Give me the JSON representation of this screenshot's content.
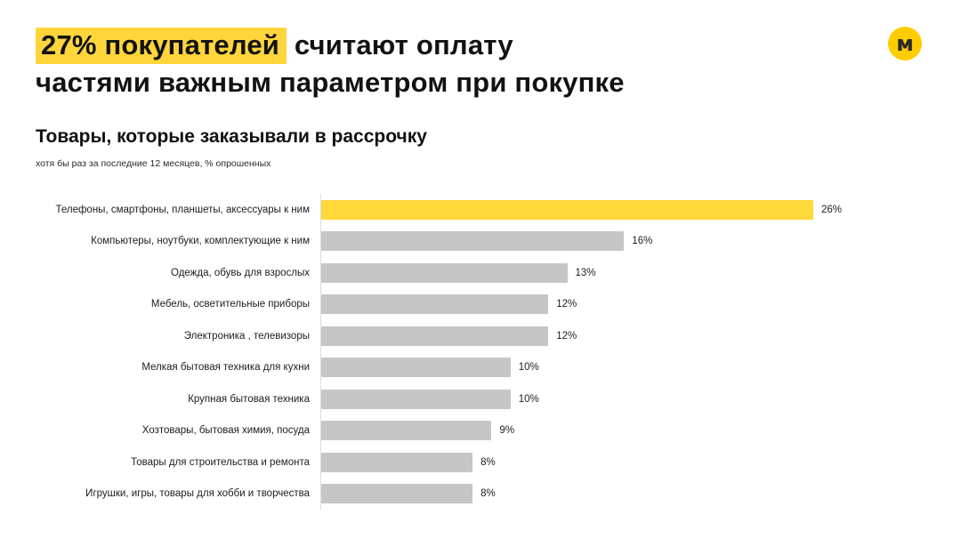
{
  "headline": {
    "highlight": "27% покупателей",
    "line1_rest": " считают оплату",
    "line2": "частями важным параметром при покупке"
  },
  "logo": {
    "name": "yandex-market-logo",
    "letter": "м"
  },
  "colors": {
    "highlight_yellow": "#ffd53b",
    "bar_yellow": "#ffd83a",
    "bar_gray": "#c6c6c6",
    "axis_line": "#dcdcdc",
    "logo_bg": "#ffcc00"
  },
  "chart_data": {
    "type": "bar",
    "orientation": "horizontal",
    "title": "Товары, которые заказывали в рассрочку",
    "subtitle": "хотя бы раз за последние 12 месяцев, % опрошенных",
    "categories": [
      "Телефоны, смартфоны, планшеты, аксессуары к ним",
      "Компьютеры, ноутбуки, комплектующие к ним",
      "Одежда, обувь для взрослых",
      "Мебель, осветительные приборы",
      "Электроника , телевизоры",
      "Мелкая бытовая техника для кухни",
      "Крупная бытовая техника",
      "Хозтовары, бытовая химия, посуда",
      "Товары для строительства и ремонта",
      "Игрушки, игры, товары для хобби и творчества"
    ],
    "values": [
      26,
      16,
      13,
      12,
      12,
      10,
      10,
      9,
      8,
      8
    ],
    "value_labels": [
      "26%",
      "16%",
      "13%",
      "12%",
      "12%",
      "10%",
      "10%",
      "9%",
      "8%",
      "8%"
    ],
    "highlight_index": 0,
    "xlim": [
      0,
      26
    ],
    "grid": false,
    "legend": "none"
  }
}
